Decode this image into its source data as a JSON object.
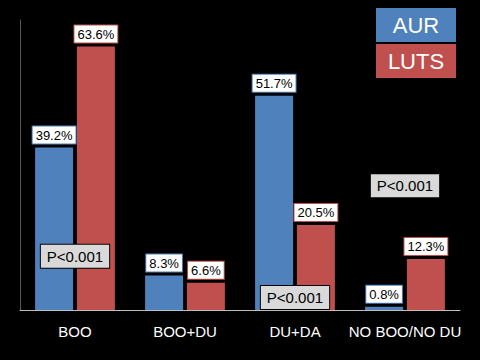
{
  "chart_data": {
    "type": "bar",
    "categories": [
      "BOO",
      "BOO+DU",
      "DU+DA",
      "NO BOO/NO DU"
    ],
    "series": [
      {
        "name": "AUR",
        "color": "#4f81bd",
        "values": [
          39.2,
          8.3,
          51.7,
          0.8
        ],
        "value_labels": [
          "39.2%",
          "8.3%",
          "51.7%",
          "0.8%"
        ]
      },
      {
        "name": "LUTS",
        "color": "#c0504d",
        "values": [
          63.6,
          6.6,
          20.5,
          12.3
        ],
        "value_labels": [
          "63.6%",
          "6.6%",
          "20.5%",
          "12.3%"
        ]
      }
    ],
    "ylim": [
      0,
      70
    ],
    "data_labels": true,
    "tick_labels": "x",
    "grid": false,
    "legend": "top-right",
    "annotations": [
      {
        "text": "P<0.001",
        "category": "BOO"
      },
      {
        "text": "P<0.001",
        "category": "DU+DA"
      },
      {
        "text": "P<0.001",
        "category": "NO BOO/NO DU"
      }
    ]
  }
}
